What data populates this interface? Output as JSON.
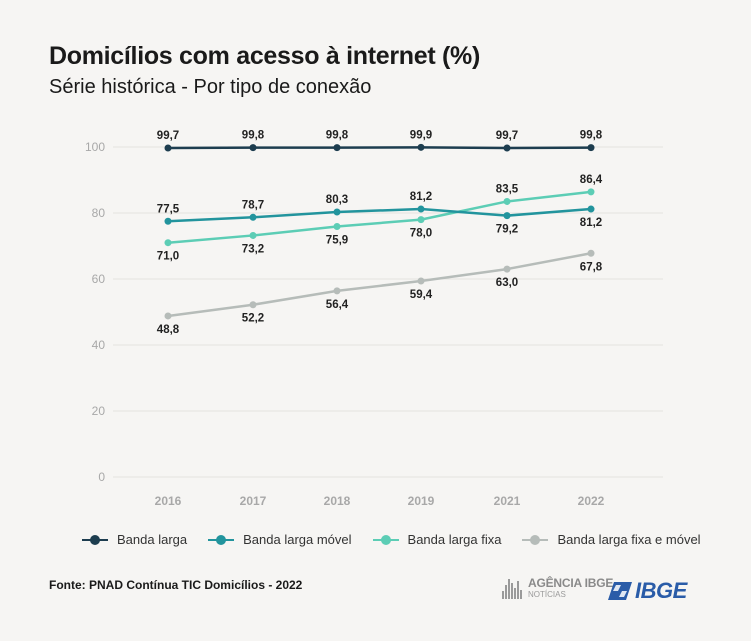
{
  "title": "Domicílios com acesso à internet (%)",
  "subtitle": "Série histórica - Por tipo de conexão",
  "source": "Fonte: PNAD Contínua TIC Domicílios - 2022",
  "logos": {
    "agencia_line1": "AGÊNCIA IBGE",
    "agencia_line2": "NOTÍCIAS",
    "ibge_wordmark": "IBGE"
  },
  "chart_data": {
    "type": "line",
    "categories": [
      "2016",
      "2017",
      "2018",
      "2019",
      "2021",
      "2022"
    ],
    "ylim": [
      0,
      100
    ],
    "yticks": [
      0,
      20,
      40,
      60,
      80,
      100
    ],
    "grid": true,
    "legend_position": "bottom",
    "series": [
      {
        "name": "Banda larga",
        "color": "#1d3d4f",
        "values": [
          99.7,
          99.8,
          99.8,
          99.9,
          99.7,
          99.8
        ],
        "labels": [
          "99,7",
          "99,8",
          "99,8",
          "99,9",
          "99,7",
          "99,8"
        ],
        "label_pos": [
          "above",
          "above",
          "above",
          "above",
          "above",
          "above"
        ]
      },
      {
        "name": "Banda larga móvel",
        "color": "#22949d",
        "values": [
          77.5,
          78.7,
          80.3,
          81.2,
          79.2,
          81.2
        ],
        "labels": [
          "77,5",
          "78,7",
          "80,3",
          "81,2",
          "79,2",
          "81,2"
        ],
        "label_pos": [
          "above",
          "above",
          "above",
          "above",
          "below",
          "below"
        ]
      },
      {
        "name": "Banda larga fixa",
        "color": "#5ccdb5",
        "values": [
          71.0,
          73.2,
          75.9,
          78.0,
          83.5,
          86.4
        ],
        "labels": [
          "71,0",
          "73,2",
          "75,9",
          "78,0",
          "83,5",
          "86,4"
        ],
        "label_pos": [
          "below",
          "below",
          "below",
          "below",
          "above",
          "above"
        ]
      },
      {
        "name": "Banda larga fixa e móvel",
        "color": "#b6bcb9",
        "values": [
          48.8,
          52.2,
          56.4,
          59.4,
          63.0,
          67.8
        ],
        "labels": [
          "48,8",
          "52,2",
          "56,4",
          "59,4",
          "63,0",
          "67,8"
        ],
        "label_pos": [
          "below",
          "below",
          "below",
          "below",
          "below",
          "below"
        ]
      }
    ]
  }
}
